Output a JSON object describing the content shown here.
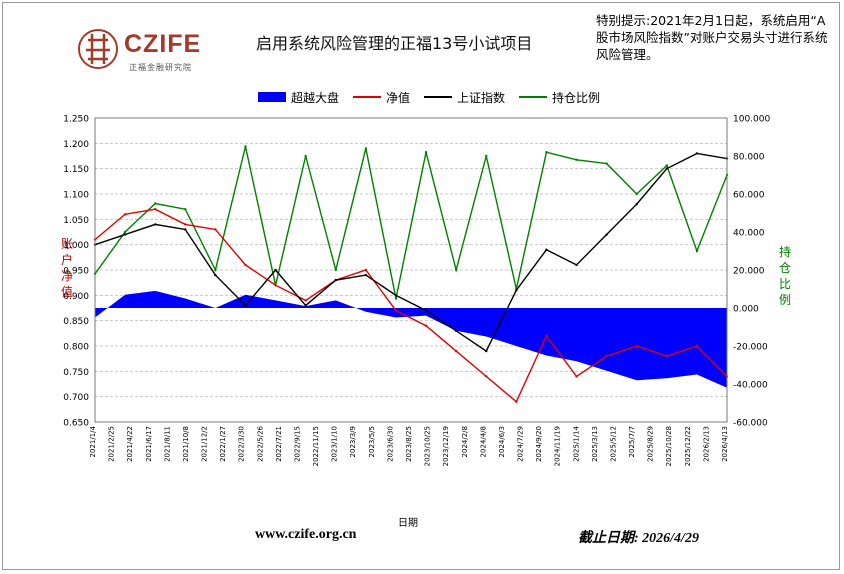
{
  "logo": {
    "name": "CZIFE",
    "subtitle": "正福金融研究院"
  },
  "title": "启用系统风险管理的正福13号小试项目",
  "notice": "特别提示:2021年2月1日起，系统启用“A股市场风险指数”对账户交易头寸进行系统风险管理。",
  "colors": {
    "excess": "#0000ff",
    "nav": "#e00000",
    "index": "#000000",
    "position": "#008000"
  },
  "footer": {
    "url": "www.czife.org.cn",
    "date": "截止日期: 2026/4/29"
  },
  "chart_data": {
    "type": "line",
    "title": "启用系统风险管理的正福13号小试项目",
    "xlabel": "日期",
    "ylabel_left": "账户净值",
    "ylabel_right": "持仓比例",
    "ylim_left": [
      0.65,
      1.25
    ],
    "ylim_right": [
      -60,
      100
    ],
    "yticks_left": [
      "1.250",
      "1.200",
      "1.150",
      "1.100",
      "1.050",
      "1.000",
      "0.950",
      "0.900",
      "0.850",
      "0.800",
      "0.750",
      "0.700",
      "0.650"
    ],
    "yticks_right": [
      "100.000",
      "80.000",
      "60.000",
      "40.000",
      "20.000",
      "0.000",
      "-20.000",
      "-40.000",
      "-60.000"
    ],
    "x": [
      "2021/1/4",
      "2021/4/1",
      "2021/7/1",
      "2021/10/8",
      "2022/1/4",
      "2022/4/1",
      "2022/7/1",
      "2022/10/10",
      "2023/1/3",
      "2023/4/3",
      "2023/7/3",
      "2023/10/9",
      "2024/1/2",
      "2024/4/1",
      "2024/7/1",
      "2024/10/8",
      "2025/1/2",
      "2025/4/1",
      "2025/7/1",
      "2025/10/9",
      "2026/1/5",
      "2026/4/29"
    ],
    "x_tick_labels": [
      "2021/1/4",
      "2021/2/25",
      "2021/4/22",
      "2021/6/17",
      "2021/8/11",
      "2021/10/8",
      "2021/12/2",
      "2022/1/27",
      "2022/3/30",
      "2022/5/26",
      "2022/7/21",
      "2022/9/15",
      "2022/11/15",
      "2023/1/10",
      "2023/3/9",
      "2023/5/5",
      "2023/6/30",
      "2023/8/25",
      "2023/10/25",
      "2023/12/19",
      "2024/2/8",
      "2024/4/8",
      "2024/6/3",
      "2024/7/29",
      "2024/9/20",
      "2024/11/19",
      "2025/1/14",
      "2025/3/13",
      "2025/5/12",
      "2025/7/7",
      "2025/8/29",
      "2025/10/28",
      "2025/12/22",
      "2026/2/13",
      "2026/4/13"
    ],
    "legend": [
      "超越大盘",
      "净值",
      "上证指数",
      "持仓比例"
    ],
    "legend_position": "top",
    "grid": true,
    "series": [
      {
        "name": "超越大盘",
        "axis": "right",
        "kind": "area",
        "values": [
          -5,
          7,
          9,
          5,
          0,
          7,
          4,
          1,
          4,
          -2,
          -5,
          -4,
          -12,
          -15,
          -20,
          -25,
          -28,
          -33,
          -38,
          -37,
          -35,
          -42
        ]
      },
      {
        "name": "净值",
        "axis": "left",
        "kind": "line",
        "values": [
          1.01,
          1.06,
          1.07,
          1.04,
          1.03,
          0.96,
          0.92,
          0.89,
          0.93,
          0.95,
          0.87,
          0.84,
          0.79,
          0.74,
          0.69,
          0.82,
          0.74,
          0.78,
          0.8,
          0.78,
          0.8,
          0.74
        ]
      },
      {
        "name": "上证指数",
        "axis": "left",
        "kind": "line",
        "values": [
          1.0,
          1.02,
          1.04,
          1.03,
          0.94,
          0.88,
          0.95,
          0.88,
          0.93,
          0.94,
          0.9,
          0.87,
          0.83,
          0.79,
          0.91,
          0.99,
          0.96,
          1.02,
          1.08,
          1.15,
          1.18,
          1.17
        ]
      },
      {
        "name": "持仓比例",
        "axis": "right",
        "kind": "line",
        "values": [
          18,
          40,
          55,
          52,
          20,
          85,
          12,
          80,
          20,
          84,
          5,
          82,
          20,
          80,
          10,
          82,
          78,
          76,
          60,
          75,
          30,
          70
        ]
      }
    ]
  }
}
